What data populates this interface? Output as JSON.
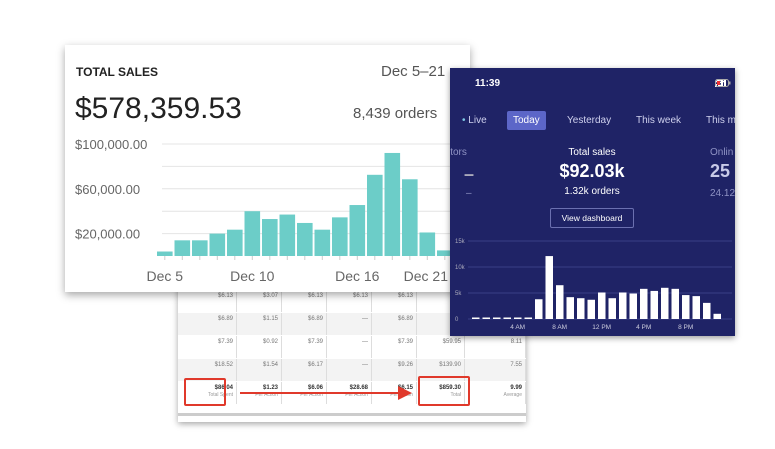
{
  "sales_card": {
    "title": "TOTAL SALES",
    "date_range": "Dec 5–21",
    "amount": "$578,359.53",
    "orders": "8,439 orders",
    "chart_data": {
      "type": "bar",
      "title": "TOTAL SALES",
      "xlabel": "",
      "ylabel": "",
      "ylim": [
        0,
        100000
      ],
      "yticks": [
        "$100,000.00",
        "$60,000.00",
        "$20,000.00"
      ],
      "ytick_values": [
        100000,
        60000,
        20000
      ],
      "xtick_labels": [
        "Dec 5",
        "Dec 10",
        "Dec 16",
        "Dec 21"
      ],
      "xtick_index": [
        0,
        5,
        11,
        16
      ],
      "categories": [
        "Dec 5",
        "Dec 6",
        "Dec 7",
        "Dec 8",
        "Dec 9",
        "Dec 10",
        "Dec 11",
        "Dec 12",
        "Dec 13",
        "Dec 14",
        "Dec 15",
        "Dec 16",
        "Dec 17",
        "Dec 18",
        "Dec 19",
        "Dec 20",
        "Dec 21"
      ],
      "values": [
        4000,
        14000,
        14000,
        20000,
        23500,
        40000,
        33000,
        37000,
        29500,
        23500,
        34500,
        45500,
        72500,
        92000,
        68500,
        21000,
        5000
      ],
      "color": "#6ccdc8"
    }
  },
  "phone": {
    "time": "11:39",
    "tabs": [
      {
        "label": "Live"
      },
      {
        "label": "Today"
      },
      {
        "label": "Yesterday"
      },
      {
        "label": "This week"
      },
      {
        "label": "This m"
      }
    ],
    "left_stat": {
      "label": "itors",
      "value": "–",
      "sub": "–"
    },
    "center_stat": {
      "label": "Total sales",
      "value": "$92.03k",
      "sub": "1.32k orders"
    },
    "right_stat": {
      "label": "Onlin",
      "value": "25",
      "sub": "24.12"
    },
    "view_dashboard": "View dashboard",
    "chart_data": {
      "type": "bar",
      "ylim": [
        0,
        15000
      ],
      "yticks": [
        "15k",
        "10k",
        "5k",
        "0"
      ],
      "ytick_values": [
        15000,
        10000,
        5000,
        0
      ],
      "xtick_labels": [
        "4 AM",
        "8 AM",
        "12 PM",
        "4 PM",
        "8 PM"
      ],
      "xtick_index": [
        4,
        8,
        12,
        16,
        20
      ],
      "values": [
        0,
        0,
        0,
        0,
        0,
        0,
        3800,
        12100,
        6500,
        4200,
        4000,
        3700,
        5100,
        4000,
        5100,
        4900,
        5800,
        5400,
        6000,
        5800,
        4600,
        4400,
        3100,
        1000
      ],
      "color": "#ffffff"
    }
  },
  "table": {
    "rows": [
      [
        "$6.13",
        "$3.07",
        "$6.13",
        "$6.13",
        "$6.13",
        "",
        ""
      ],
      [
        "$6.89",
        "$1.15",
        "$6.89",
        "—",
        "$6.89",
        "",
        ""
      ],
      [
        "$7.39",
        "$0.92",
        "$7.39",
        "—",
        "$7.39",
        "$59.95",
        "8.11"
      ],
      [
        "$18.52",
        "$1.54",
        "$6.17",
        "—",
        "$9.26",
        "$139.90",
        "7.55"
      ]
    ],
    "total_row": [
      {
        "v": "$86.04",
        "s": "Total Spent"
      },
      {
        "v": "$1.23",
        "s": "Per Action"
      },
      {
        "v": "$6.06",
        "s": "Per Action"
      },
      {
        "v": "$28.68",
        "s": "Per Action"
      },
      {
        "v": "$6.15",
        "s": "Per Action"
      },
      {
        "v": "$859.30",
        "s": "Total"
      },
      {
        "v": "9.99",
        "s": "Average"
      }
    ]
  }
}
